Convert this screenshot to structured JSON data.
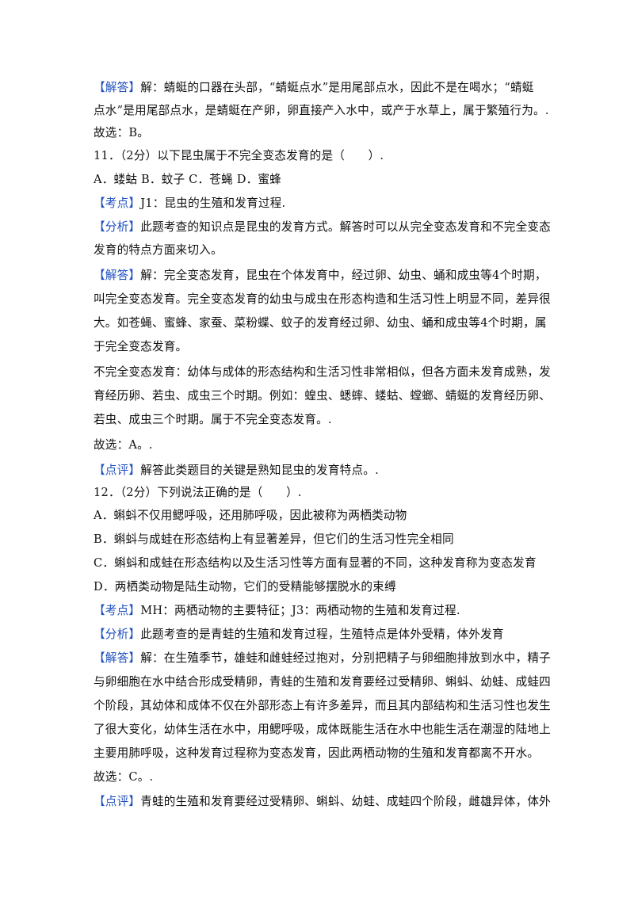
{
  "lines": [
    {
      "tag": "【解答】",
      "text": "解：蜻蜓的口器在头部，“蜻蜓点水”是用尾部点水，因此不是在喝水；“蜻蜓"
    },
    {
      "text": "点水”是用尾部点水，是蜻蜓在产卵，卵直接产入水中，或产于水草上，属于繁殖行为。."
    },
    {
      "text": "故选：B。"
    },
    {
      "text": "11．（2分）以下昆虫属于不完全变态发育的是（　　）."
    },
    {
      "text": "A．蝼蛄 B．蚊子 C．苍蝇 D．蜜蜂"
    },
    {
      "tag": "【考点】",
      "text": "J1：昆虫的生殖和发育过程."
    },
    {
      "tag": "【分析】",
      "text": "此题考查的知识点是昆虫的发育方式。解答时可以从完全变态发育和不完全变态"
    },
    {
      "text": "发育的特点方面来切入。"
    },
    {
      "tag": "【解答】",
      "text": "解：完全变态发育，昆虫在个体发育中，经过卵、幼虫、蛹和成虫等4个时期，"
    },
    {
      "text": "叫完全变态发育。完全变态发育的幼虫与成虫在形态构造和生活习性上明显不同，差异很"
    },
    {
      "text": "大。如苍蝇、蜜蜂、家蚕、菜粉蝶、蚊子的发育经过卵、幼虫、蛹和成虫等4个时期，属"
    },
    {
      "text": "于完全变态发育。"
    },
    {
      "text": "不完全变态发育：幼体与成体的形态结构和生活习性非常相似，但各方面未发育成熟，发"
    },
    {
      "text": "育经历卵、若虫、成虫三个时期。例如：蝗虫、蟋蟀、蝼蛄、螳螂、蜻蜓的发育经历卵、"
    },
    {
      "text": "若虫、成虫三个时期。属于不完全变态发育。."
    },
    {
      "text": "故选：A。."
    },
    {
      "tag": "【点评】",
      "text": "解答此类题目的关键是熟知昆虫的发育特点。."
    },
    {
      "text": "12．（2分）下列说法正确的是（　　）."
    },
    {
      "text": "A．蝌蚪不仅用鳃呼吸，还用肺呼吸，因此被称为两栖类动物"
    },
    {
      "text": "B．蝌蚪与成蛙在形态结构上有显著差异，但它们的生活习性完全相同"
    },
    {
      "text": "C．蝌蚪和成蛙在形态结构以及生活习性等方面有显著的不同，这种发育称为变态发育"
    },
    {
      "text": "D．两栖类动物是陆生动物，它们的受精能够摆脱水的束缚"
    },
    {
      "tag": "【考点】",
      "text": "MH：两栖动物的主要特征；J3：两栖动物的生殖和发育过程."
    },
    {
      "tag": "【分析】",
      "text": "此题考查的是青蛙的生殖和发育过程，生殖特点是体外受精，体外发育"
    },
    {
      "tag": "【解答】",
      "text": "解：在生殖季节，雄蛙和雌蛙经过抱对，分别把精子与卵细胞排放到水中，精子"
    },
    {
      "text": "与卵细胞在水中结合形成受精卵，青蛙的生殖和发育要经过受精卵、蝌蚪、幼蛙、成蛙四"
    },
    {
      "text": "个阶段，其幼体和成体不仅在外部形态上有许多差异，而且其内部结构和生活习性也发生"
    },
    {
      "text": "了很大变化，幼体生活在水中，用鳃呼吸，成体既能生活在水中也能生活在潮湿的陆地上"
    },
    {
      "text": "主要用肺呼吸，这种发育过程称为变态发育，因此两栖动物的生殖和发育都离不开水。"
    },
    {
      "text": "故选：C。."
    },
    {
      "tag": "【点评】",
      "text": "青蛙的生殖和发育要经过受精卵、蝌蚪、幼蛙、成蛙四个阶段，雌雄异体，体外"
    }
  ]
}
